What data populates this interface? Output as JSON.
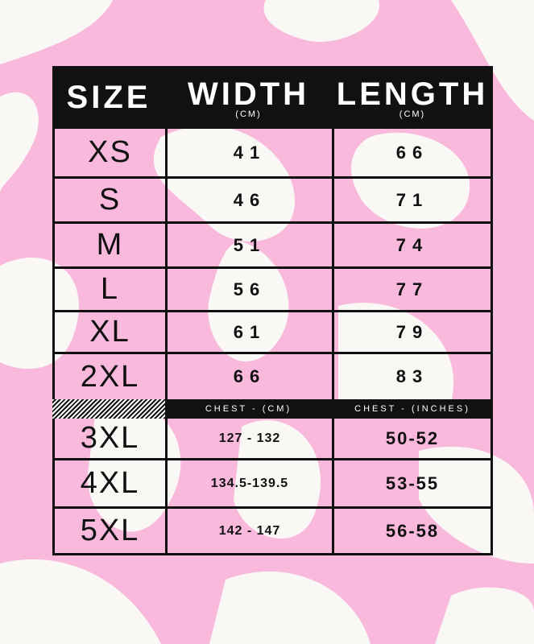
{
  "colors": {
    "background_pink": "#f8b9dd",
    "blob_white": "#faf8f4",
    "ink": "#111111"
  },
  "header": {
    "size": "SIZE",
    "width": "WIDTH",
    "width_unit": "(CM)",
    "length": "LENGTH",
    "length_unit": "(CM)"
  },
  "rows": [
    {
      "size": "XS",
      "width": "41",
      "length": "66"
    },
    {
      "size": "S",
      "width": "46",
      "length": "71"
    },
    {
      "size": "M",
      "width": "51",
      "length": "74"
    },
    {
      "size": "L",
      "width": "56",
      "length": "77"
    },
    {
      "size": "XL",
      "width": "61",
      "length": "79"
    },
    {
      "size": "2XL",
      "width": "66",
      "length": "83"
    }
  ],
  "chest_header": {
    "cm": "CHEST - (CM)",
    "inches": "CHEST - (INCHES)"
  },
  "chest_rows": [
    {
      "size": "3XL",
      "cm": "127 - 132",
      "inches": "50-52"
    },
    {
      "size": "4XL",
      "cm": "134.5-139.5",
      "inches": "53-55"
    },
    {
      "size": "5XL",
      "cm": "142 - 147",
      "inches": "56-58"
    }
  ]
}
